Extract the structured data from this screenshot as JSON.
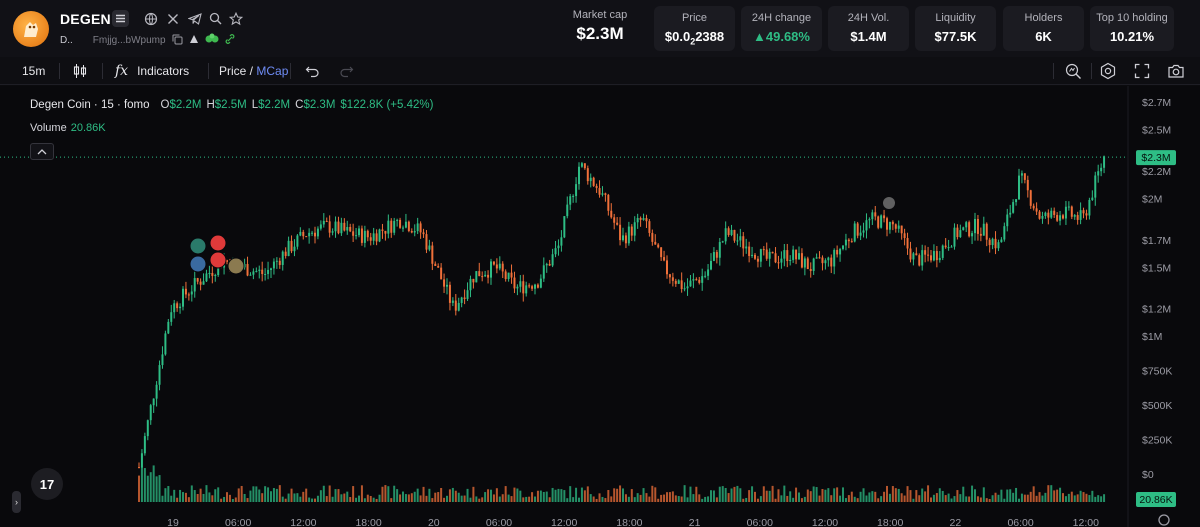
{
  "token": {
    "name": "DEGEN",
    "short_name": "D..",
    "address": "Fmjjg...bWpump"
  },
  "header": {
    "market_cap_label": "Market cap",
    "market_cap_value": "$2.3M",
    "stats": [
      {
        "label": "Price",
        "value": "$0.0",
        "sub": "2",
        "tail": "2388"
      },
      {
        "label": "24H change",
        "value": "▲49.68%",
        "color": "#2ebd85"
      },
      {
        "label": "24H Vol.",
        "value": "$1.4M"
      },
      {
        "label": "Liquidity",
        "value": "$77.5K"
      },
      {
        "label": "Holders",
        "value": "6K"
      },
      {
        "label": "Top 10 holding",
        "value": "10.21%"
      }
    ]
  },
  "toolbar": {
    "interval": "15m",
    "indicators_label": "Indicators",
    "price_label": "Price",
    "slash": " / ",
    "mcap_label": "MCap"
  },
  "legend": {
    "title": "Degen Coin · 15 · fomo",
    "o_label": "O",
    "o_value": "$2.2M",
    "h_label": "H",
    "h_value": "$2.5M",
    "l_label": "L",
    "l_value": "$2.2M",
    "c_label": "C",
    "c_value": "$2.3M",
    "change": "$122.8K (+5.42%)",
    "volume_label": "Volume",
    "volume_value": "20.86K"
  },
  "tv_logo_text": "17",
  "colors": {
    "up": "#2ebd85",
    "down": "#f0703a",
    "accent": "#6f8cf5",
    "background": "#09090c"
  },
  "chart_data": {
    "type": "candlestick",
    "y_ticks": [
      "$2.7M",
      "$2.5M",
      "$2.2M",
      "$2M",
      "$1.7M",
      "$1.5M",
      "$1.2M",
      "$1M",
      "$750K",
      "$500K",
      "$250K",
      "$0"
    ],
    "y_tick_values": [
      2700000,
      2500000,
      2200000,
      2000000,
      1700000,
      1500000,
      1200000,
      1000000,
      750000,
      500000,
      250000,
      0
    ],
    "x_ticks": [
      "19",
      "06:00",
      "12:00",
      "18:00",
      "20",
      "06:00",
      "12:00",
      "18:00",
      "21",
      "06:00",
      "12:00",
      "18:00",
      "22",
      "06:00",
      "12:00"
    ],
    "current_price_label": "$2.3M",
    "current_price": 2300000,
    "volume_label": "20.86K",
    "price_path": [
      [
        0,
        0.05
      ],
      [
        1.5,
        1.2
      ],
      [
        2.5,
        1.35
      ],
      [
        4,
        1.55
      ],
      [
        5,
        1.5
      ],
      [
        6,
        1.45
      ],
      [
        7,
        1.62
      ],
      [
        8,
        1.75
      ],
      [
        9,
        1.8
      ],
      [
        10,
        1.75
      ],
      [
        11,
        1.72
      ],
      [
        12.5,
        1.85
      ],
      [
        13.5,
        1.75
      ],
      [
        15,
        1.2
      ],
      [
        16,
        1.45
      ],
      [
        17,
        1.5
      ],
      [
        18,
        1.35
      ],
      [
        19,
        1.4
      ],
      [
        20,
        1.65
      ],
      [
        21,
        2.25
      ],
      [
        22,
        2.05
      ],
      [
        23,
        1.7
      ],
      [
        24,
        1.85
      ],
      [
        25,
        1.5
      ],
      [
        26,
        1.35
      ],
      [
        27,
        1.45
      ],
      [
        28,
        1.75
      ],
      [
        29,
        1.65
      ],
      [
        30,
        1.55
      ],
      [
        31,
        1.6
      ],
      [
        32,
        1.5
      ],
      [
        33,
        1.55
      ],
      [
        34,
        1.75
      ],
      [
        35,
        1.85
      ],
      [
        36,
        1.8
      ],
      [
        37,
        1.55
      ],
      [
        38,
        1.6
      ],
      [
        39,
        1.75
      ],
      [
        40,
        1.8
      ],
      [
        41,
        1.65
      ],
      [
        42,
        2.15
      ],
      [
        43,
        1.85
      ],
      [
        44,
        1.9
      ],
      [
        45,
        1.85
      ],
      [
        46,
        2.3
      ]
    ],
    "x_span": 46,
    "start_offset_ticks": 1
  }
}
